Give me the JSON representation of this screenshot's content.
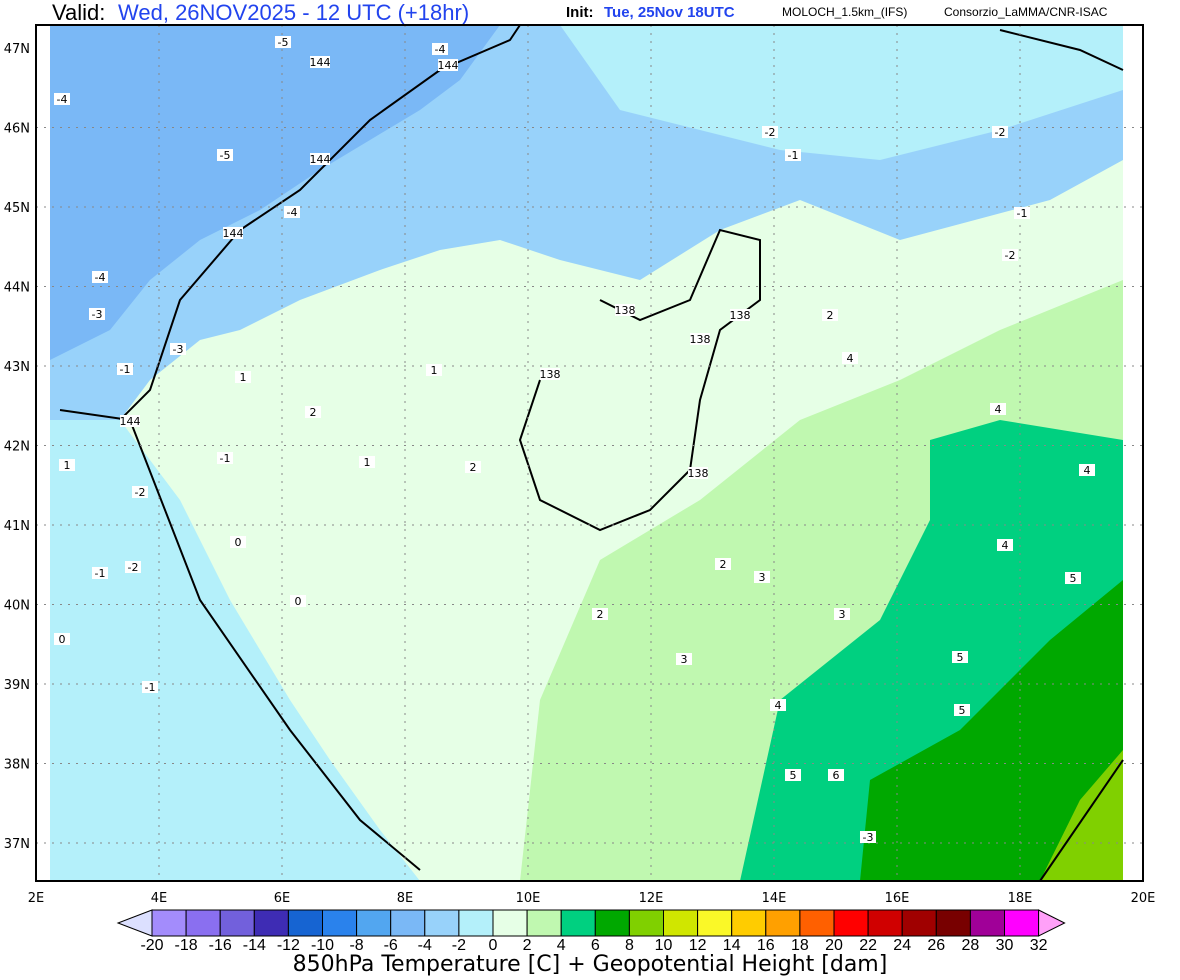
{
  "header": {
    "valid_label": "Valid:",
    "valid_value": "Wed, 26NOV2025 - 12 UTC (+18hr)",
    "init_label": "Init:",
    "init_value": "Tue, 25Nov 18UTC",
    "model": "MOLOCH_1.5km_(IFS)",
    "organization": "Consorzio_LaMMA/CNR-ISAC"
  },
  "map": {
    "lat_ticks": [
      "47N",
      "46N",
      "45N",
      "44N",
      "43N",
      "42N",
      "41N",
      "40N",
      "39N",
      "38N",
      "37N"
    ],
    "lon_ticks": [
      "2E",
      "4E",
      "6E",
      "8E",
      "10E",
      "12E",
      "14E",
      "16E",
      "18E",
      "20E"
    ],
    "geopotential_labels": [
      "144",
      "144",
      "144",
      "144",
      "144",
      "138",
      "138",
      "138",
      "138",
      "138"
    ],
    "temperature_labels": [
      "-5",
      "-4",
      "-4",
      "-5",
      "-4",
      "-2",
      "-1",
      "-2",
      "-1",
      "-2",
      "-1",
      "-4",
      "-3",
      "-3",
      "-2",
      "-1",
      "-2",
      "-1",
      "-1",
      "0",
      "0",
      "1",
      "1",
      "2",
      "2",
      "1",
      "2",
      "3",
      "3",
      "2",
      "3",
      "4",
      "4",
      "4",
      "5",
      "5",
      "4",
      "5",
      "5",
      "6",
      "-3",
      "0",
      "1",
      "2",
      "4"
    ]
  },
  "colorbar": {
    "title": "850hPa Temperature [C] + Geopotential Height [dam]",
    "ticks": [
      "-20",
      "-18",
      "-16",
      "-14",
      "-12",
      "-10",
      "-8",
      "-6",
      "-4",
      "-2",
      "0",
      "2",
      "4",
      "6",
      "8",
      "10",
      "12",
      "14",
      "16",
      "18",
      "20",
      "22",
      "24",
      "26",
      "28",
      "30",
      "32"
    ],
    "colors": [
      "#a38cfc",
      "#8a6ff0",
      "#7260dc",
      "#3e2cb4",
      "#1664d2",
      "#2a82ec",
      "#52a6f0",
      "#7ab8f6",
      "#98d2fa",
      "#b4f0fa",
      "#e6ffe6",
      "#c0f8b0",
      "#00d080",
      "#00a800",
      "#80d000",
      "#d0e600",
      "#faf828",
      "#ffcc00",
      "#ffa000",
      "#ff6000",
      "#ff0000",
      "#d00000",
      "#a00000",
      "#780000",
      "#a00098",
      "#ff00ff"
    ],
    "under_color": "#dce0ff",
    "over_color": "#ffa0f8"
  }
}
